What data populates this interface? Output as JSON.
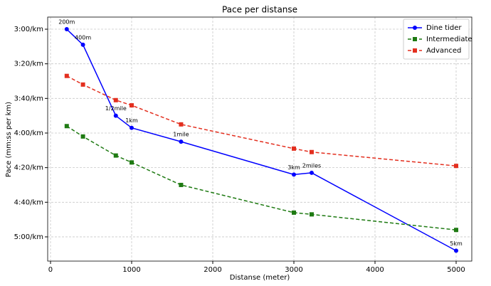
{
  "chart_data": {
    "type": "line",
    "title": "Pace per distanse",
    "xlabel": "Distanse (meter)",
    "ylabel": "Pace (mm:ss per km)",
    "x": [
      200,
      400,
      805,
      1000,
      1609,
      3000,
      3219,
      5000
    ],
    "series": [
      {
        "name": "Dine tider",
        "color": "#0000ff",
        "marker": "circle",
        "linestyle": "solid",
        "values": [
          180,
          189,
          230,
          237,
          245,
          264,
          263,
          308
        ],
        "point_labels": [
          "200m",
          "400m",
          "1/2mile",
          "1km",
          "1mile",
          "3km",
          "2miles",
          "5km"
        ]
      },
      {
        "name": "Intermediate",
        "color": "#1e7a12",
        "marker": "square",
        "linestyle": "dashed",
        "values": [
          236,
          242,
          253,
          257,
          270,
          286,
          287,
          296
        ]
      },
      {
        "name": "Advanced",
        "color": "#e32f1f",
        "marker": "square",
        "linestyle": "dashed",
        "values": [
          207,
          212,
          221,
          224,
          235,
          249,
          251,
          259
        ]
      }
    ],
    "xlim": [
      -35,
      5193
    ],
    "xticks": [
      0,
      1000,
      2000,
      3000,
      4000,
      5000
    ],
    "ylim": [
      314,
      173
    ],
    "yticks": [
      {
        "value": 180,
        "label": "3:00/km"
      },
      {
        "value": 200,
        "label": "3:20/km"
      },
      {
        "value": 220,
        "label": "3:40/km"
      },
      {
        "value": 240,
        "label": "4:00/km"
      },
      {
        "value": 260,
        "label": "4:20/km"
      },
      {
        "value": 280,
        "label": "4:40/km"
      },
      {
        "value": 300,
        "label": "5:00/km"
      }
    ],
    "grid": true,
    "legend": "upper right"
  }
}
